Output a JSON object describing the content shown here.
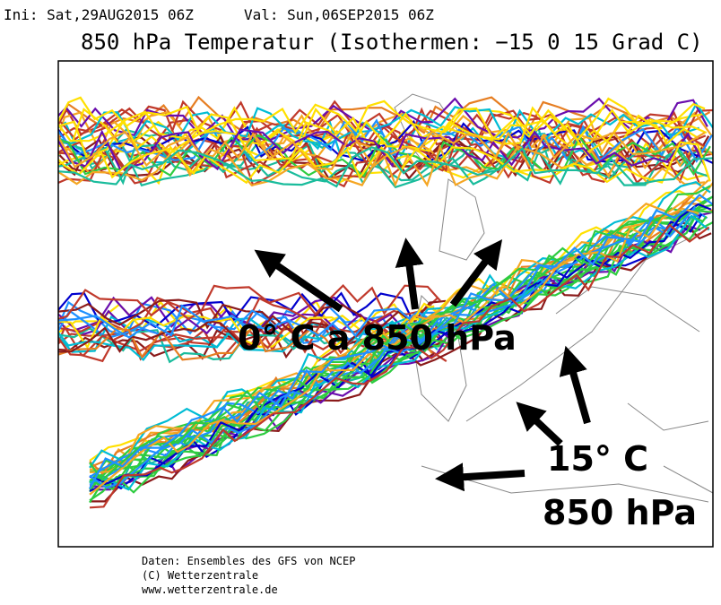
{
  "header": {
    "init": "Ini: Sat,29AUG2015 06Z",
    "valid": "Val: Sun,06SEP2015 06Z",
    "title": "850 hPa Temperatur (Isothermen: −15 0 15 Grad C)"
  },
  "annotations": {
    "zero": "0° C a 850 hPa",
    "fifteen_line1": "15° C",
    "fifteen_line2": "850 hPa"
  },
  "footer": [
    "Daten: Ensembles des GFS von NCEP",
    "(C) Wetterzentrale",
    "www.wetterzentrale.de"
  ]
}
